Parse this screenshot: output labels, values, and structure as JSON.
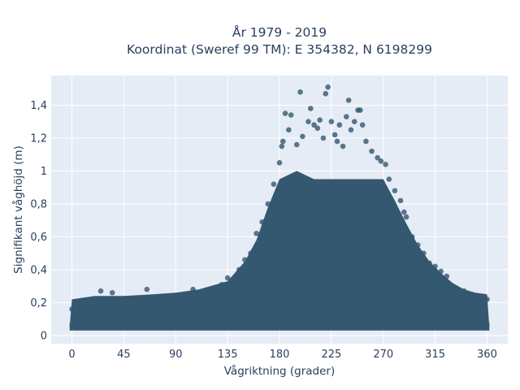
{
  "chart_data": {
    "type": "scatter",
    "title_line1": "År 1979 - 2019",
    "title_line2": "Koordinat (Sweref 99 TM): E 354382, N 6198299",
    "xlabel": "Vågriktning (grader)",
    "ylabel": "Signifikant våghöjd (m)",
    "xlim": [
      -18,
      378
    ],
    "ylim": [
      -0.05,
      1.58
    ],
    "x_ticks": [
      0,
      45,
      90,
      135,
      180,
      225,
      270,
      315,
      360
    ],
    "x_tick_labels": [
      "0",
      "45",
      "90",
      "135",
      "180",
      "225",
      "270",
      "315",
      "360"
    ],
    "y_ticks": [
      0,
      0.2,
      0.4,
      0.6,
      0.8,
      1.0,
      1.2,
      1.4
    ],
    "y_tick_labels": [
      "0",
      "0,2",
      "0,4",
      "0,6",
      "0,8",
      "1",
      "1,2",
      "1,4"
    ],
    "grid": true,
    "legend": "none",
    "colors": {
      "marker": "#34586f",
      "plot_bg": "#e5ecf6",
      "grid": "#ffffff",
      "text": "#2a3f5f"
    },
    "upper_envelope": [
      [
        0,
        0.22
      ],
      [
        20,
        0.24
      ],
      [
        45,
        0.24
      ],
      [
        70,
        0.25
      ],
      [
        90,
        0.26
      ],
      [
        110,
        0.28
      ],
      [
        135,
        0.33
      ],
      [
        150,
        0.45
      ],
      [
        160,
        0.58
      ],
      [
        170,
        0.78
      ],
      [
        180,
        0.95
      ],
      [
        195,
        1.0
      ],
      [
        210,
        0.95
      ],
      [
        225,
        0.95
      ],
      [
        240,
        0.95
      ],
      [
        255,
        0.95
      ],
      [
        270,
        0.95
      ],
      [
        280,
        0.82
      ],
      [
        290,
        0.68
      ],
      [
        300,
        0.55
      ],
      [
        310,
        0.45
      ],
      [
        320,
        0.38
      ],
      [
        330,
        0.32
      ],
      [
        340,
        0.28
      ],
      [
        350,
        0.26
      ],
      [
        360,
        0.25
      ]
    ],
    "points": [
      [
        0,
        0.16
      ],
      [
        5,
        0.15
      ],
      [
        10,
        0.17
      ],
      [
        15,
        0.14
      ],
      [
        20,
        0.18
      ],
      [
        25,
        0.27
      ],
      [
        30,
        0.16
      ],
      [
        35,
        0.26
      ],
      [
        40,
        0.15
      ],
      [
        45,
        0.17
      ],
      [
        50,
        0.18
      ],
      [
        55,
        0.16
      ],
      [
        60,
        0.19
      ],
      [
        65,
        0.28
      ],
      [
        70,
        0.17
      ],
      [
        75,
        0.2
      ],
      [
        80,
        0.18
      ],
      [
        85,
        0.21
      ],
      [
        90,
        0.19
      ],
      [
        95,
        0.22
      ],
      [
        100,
        0.2
      ],
      [
        105,
        0.28
      ],
      [
        110,
        0.24
      ],
      [
        115,
        0.25
      ],
      [
        120,
        0.27
      ],
      [
        125,
        0.29
      ],
      [
        130,
        0.31
      ],
      [
        135,
        0.35
      ],
      [
        140,
        0.33
      ],
      [
        145,
        0.4
      ],
      [
        150,
        0.46
      ],
      [
        155,
        0.5
      ],
      [
        160,
        0.62
      ],
      [
        165,
        0.69
      ],
      [
        170,
        0.8
      ],
      [
        175,
        0.92
      ],
      [
        180,
        1.05
      ],
      [
        182,
        1.15
      ],
      [
        183,
        1.18
      ],
      [
        185,
        1.35
      ],
      [
        188,
        1.25
      ],
      [
        190,
        1.34
      ],
      [
        195,
        1.16
      ],
      [
        198,
        1.48
      ],
      [
        200,
        1.21
      ],
      [
        205,
        1.3
      ],
      [
        207,
        1.38
      ],
      [
        210,
        1.28
      ],
      [
        213,
        1.26
      ],
      [
        215,
        1.31
      ],
      [
        218,
        1.2
      ],
      [
        220,
        1.47
      ],
      [
        222,
        1.51
      ],
      [
        225,
        1.3
      ],
      [
        228,
        1.22
      ],
      [
        230,
        1.18
      ],
      [
        232,
        1.28
      ],
      [
        235,
        1.15
      ],
      [
        238,
        1.33
      ],
      [
        240,
        1.43
      ],
      [
        242,
        1.25
      ],
      [
        245,
        1.3
      ],
      [
        248,
        1.37
      ],
      [
        250,
        1.37
      ],
      [
        252,
        1.28
      ],
      [
        255,
        1.18
      ],
      [
        260,
        1.12
      ],
      [
        265,
        1.08
      ],
      [
        268,
        1.06
      ],
      [
        272,
        1.04
      ],
      [
        275,
        0.95
      ],
      [
        280,
        0.88
      ],
      [
        285,
        0.82
      ],
      [
        288,
        0.75
      ],
      [
        290,
        0.72
      ],
      [
        295,
        0.6
      ],
      [
        300,
        0.55
      ],
      [
        305,
        0.5
      ],
      [
        310,
        0.44
      ],
      [
        315,
        0.42
      ],
      [
        320,
        0.39
      ],
      [
        325,
        0.36
      ],
      [
        330,
        0.3
      ],
      [
        335,
        0.28
      ],
      [
        340,
        0.27
      ],
      [
        345,
        0.25
      ],
      [
        350,
        0.24
      ],
      [
        355,
        0.23
      ],
      [
        360,
        0.22
      ]
    ]
  }
}
